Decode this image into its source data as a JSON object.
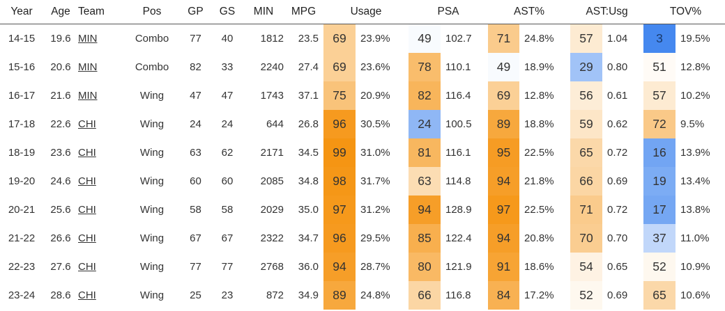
{
  "columns": [
    "Year",
    "Age",
    "Team",
    "Pos",
    "GP",
    "GS",
    "MIN",
    "MPG",
    "Usage",
    "PSA",
    "AST%",
    "AST:Usg",
    "TOV%"
  ],
  "rows": [
    {
      "year": "14-15",
      "age": "19.6",
      "team": "MIN",
      "pos": "Combo",
      "gp": "77",
      "gs": "40",
      "min": "1812",
      "mpg": "23.5",
      "usage_pct": "69",
      "usage": "23.9%",
      "psa_pct": "49",
      "psa": "102.7",
      "ast_pct": "71",
      "ast": "24.8%",
      "astusg_pct": "57",
      "astusg": "1.04",
      "tov_pct": "3",
      "tov": "19.5%"
    },
    {
      "year": "15-16",
      "age": "20.6",
      "team": "MIN",
      "pos": "Combo",
      "gp": "82",
      "gs": "33",
      "min": "2240",
      "mpg": "27.4",
      "usage_pct": "69",
      "usage": "23.6%",
      "psa_pct": "78",
      "psa": "110.1",
      "ast_pct": "49",
      "ast": "18.9%",
      "astusg_pct": "29",
      "astusg": "0.80",
      "tov_pct": "51",
      "tov": "12.8%"
    },
    {
      "year": "16-17",
      "age": "21.6",
      "team": "MIN",
      "pos": "Wing",
      "gp": "47",
      "gs": "47",
      "min": "1743",
      "mpg": "37.1",
      "usage_pct": "75",
      "usage": "20.9%",
      "psa_pct": "82",
      "psa": "116.4",
      "ast_pct": "69",
      "ast": "12.8%",
      "astusg_pct": "56",
      "astusg": "0.61",
      "tov_pct": "57",
      "tov": "10.2%"
    },
    {
      "year": "17-18",
      "age": "22.6",
      "team": "CHI",
      "pos": "Wing",
      "gp": "24",
      "gs": "24",
      "min": "644",
      "mpg": "26.8",
      "usage_pct": "96",
      "usage": "30.5%",
      "psa_pct": "24",
      "psa": "100.5",
      "ast_pct": "89",
      "ast": "18.8%",
      "astusg_pct": "59",
      "astusg": "0.62",
      "tov_pct": "72",
      "tov": "9.5%"
    },
    {
      "year": "18-19",
      "age": "23.6",
      "team": "CHI",
      "pos": "Wing",
      "gp": "63",
      "gs": "62",
      "min": "2171",
      "mpg": "34.5",
      "usage_pct": "99",
      "usage": "31.0%",
      "psa_pct": "81",
      "psa": "116.1",
      "ast_pct": "95",
      "ast": "22.5%",
      "astusg_pct": "65",
      "astusg": "0.72",
      "tov_pct": "16",
      "tov": "13.9%"
    },
    {
      "year": "19-20",
      "age": "24.6",
      "team": "CHI",
      "pos": "Wing",
      "gp": "60",
      "gs": "60",
      "min": "2085",
      "mpg": "34.8",
      "usage_pct": "98",
      "usage": "31.7%",
      "psa_pct": "63",
      "psa": "114.8",
      "ast_pct": "94",
      "ast": "21.8%",
      "astusg_pct": "66",
      "astusg": "0.69",
      "tov_pct": "19",
      "tov": "13.4%"
    },
    {
      "year": "20-21",
      "age": "25.6",
      "team": "CHI",
      "pos": "Wing",
      "gp": "58",
      "gs": "58",
      "min": "2029",
      "mpg": "35.0",
      "usage_pct": "97",
      "usage": "31.2%",
      "psa_pct": "94",
      "psa": "128.9",
      "ast_pct": "97",
      "ast": "22.5%",
      "astusg_pct": "71",
      "astusg": "0.72",
      "tov_pct": "17",
      "tov": "13.8%"
    },
    {
      "year": "21-22",
      "age": "26.6",
      "team": "CHI",
      "pos": "Wing",
      "gp": "67",
      "gs": "67",
      "min": "2322",
      "mpg": "34.7",
      "usage_pct": "96",
      "usage": "29.5%",
      "psa_pct": "85",
      "psa": "122.4",
      "ast_pct": "94",
      "ast": "20.8%",
      "astusg_pct": "70",
      "astusg": "0.70",
      "tov_pct": "37",
      "tov": "11.0%"
    },
    {
      "year": "22-23",
      "age": "27.6",
      "team": "CHI",
      "pos": "Wing",
      "gp": "77",
      "gs": "77",
      "min": "2768",
      "mpg": "36.0",
      "usage_pct": "94",
      "usage": "28.7%",
      "psa_pct": "80",
      "psa": "121.9",
      "ast_pct": "91",
      "ast": "18.6%",
      "astusg_pct": "54",
      "astusg": "0.65",
      "tov_pct": "52",
      "tov": "10.9%"
    },
    {
      "year": "23-24",
      "age": "28.6",
      "team": "CHI",
      "pos": "Wing",
      "gp": "25",
      "gs": "23",
      "min": "872",
      "mpg": "34.9",
      "usage_pct": "89",
      "usage": "24.8%",
      "psa_pct": "66",
      "psa": "116.8",
      "ast_pct": "84",
      "ast": "17.2%",
      "astusg_pct": "52",
      "astusg": "0.69",
      "tov_pct": "65",
      "tov": "10.6%"
    }
  ],
  "colors": {
    "high": "#f5930f",
    "mid": "#ffffff",
    "low": "#3b82ee",
    "pct_text": "#333333",
    "pct_text_on_blue": "#1a3a6b"
  }
}
